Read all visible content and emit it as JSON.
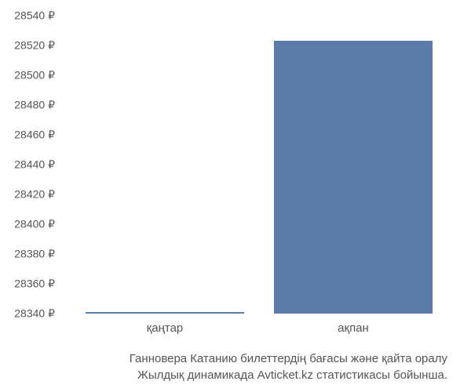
{
  "chart": {
    "type": "bar",
    "ylim": [
      28340,
      28540
    ],
    "ytick_step": 20,
    "yticks": [
      28340,
      28360,
      28380,
      28400,
      28420,
      28440,
      28460,
      28480,
      28500,
      28520,
      28540
    ],
    "currency_symbol": "₽",
    "categories": [
      "қаңтар",
      "ақпан"
    ],
    "values": [
      28340,
      28523
    ],
    "bar_color": "#5b7ba8",
    "background_color": "#ffffff",
    "text_color": "#555555",
    "label_fontsize": 15,
    "tick_fontsize": 14,
    "bar_width_pct": 42
  },
  "caption": {
    "line1": "Ганновера Катанию билеттердің бағасы және қайта оралу",
    "line2": "Жылдық динамикада Avticket.kz статистикасы бойынша."
  }
}
